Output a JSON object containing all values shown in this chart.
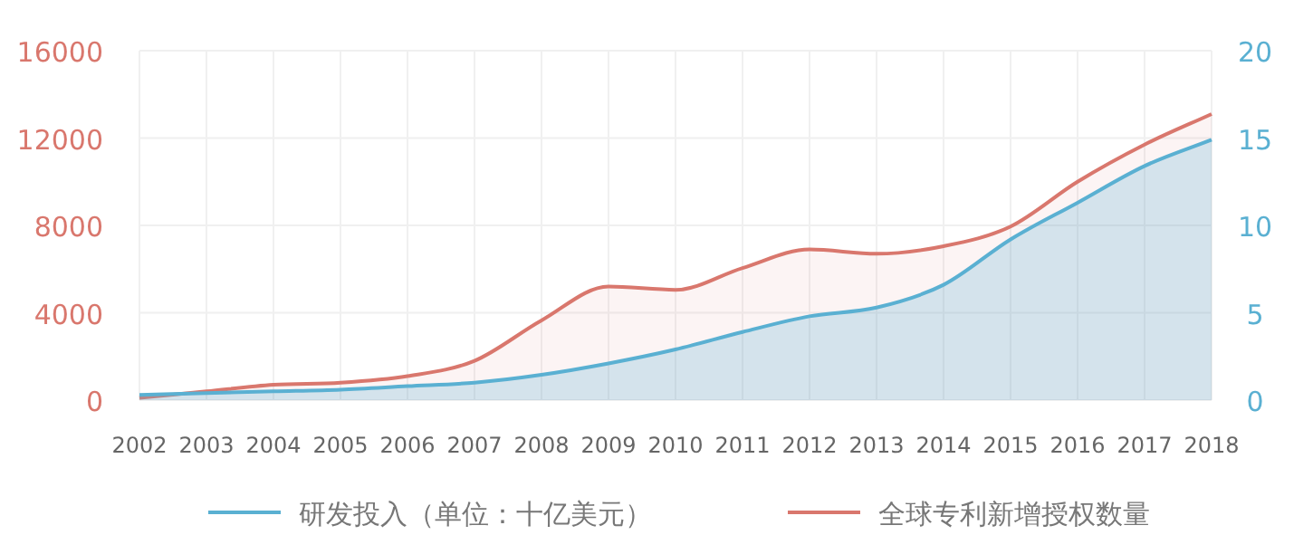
{
  "chart_data": {
    "type": "area",
    "x": [
      2002,
      2003,
      2004,
      2005,
      2006,
      2007,
      2008,
      2009,
      2010,
      2011,
      2012,
      2013,
      2014,
      2015,
      2016,
      2017,
      2018
    ],
    "series": [
      {
        "name": "研发投入（单位：十亿美元）",
        "color": "#5ab0d2",
        "axis": "y2",
        "values": [
          0.3,
          0.4,
          0.5,
          0.6,
          0.8,
          1.0,
          1.45,
          2.1,
          2.9,
          3.9,
          4.8,
          5.3,
          6.6,
          9.2,
          11.3,
          13.4,
          14.9
        ]
      },
      {
        "name": "全球专利新增授权数量",
        "color": "#d9776d",
        "values": [
          100,
          400,
          700,
          800,
          1100,
          1800,
          3650,
          5200,
          5050,
          6050,
          6900,
          6700,
          7050,
          7950,
          10000,
          11700,
          13100
        ]
      }
    ],
    "xlim": [
      2002,
      2018
    ],
    "xticks": [
      2002,
      2003,
      2004,
      2005,
      2006,
      2007,
      2008,
      2009,
      2010,
      2011,
      2012,
      2013,
      2014,
      2015,
      2016,
      2017,
      2018
    ],
    "ylim": [
      0,
      16000
    ],
    "yticks": [
      0,
      4000,
      8000,
      12000,
      16000
    ],
    "y2lim": [
      0,
      20
    ],
    "y2ticks": [
      0,
      5,
      10,
      15,
      20
    ],
    "grid": true,
    "legend": "bottom",
    "marker": "none",
    "line_style": "solid"
  }
}
